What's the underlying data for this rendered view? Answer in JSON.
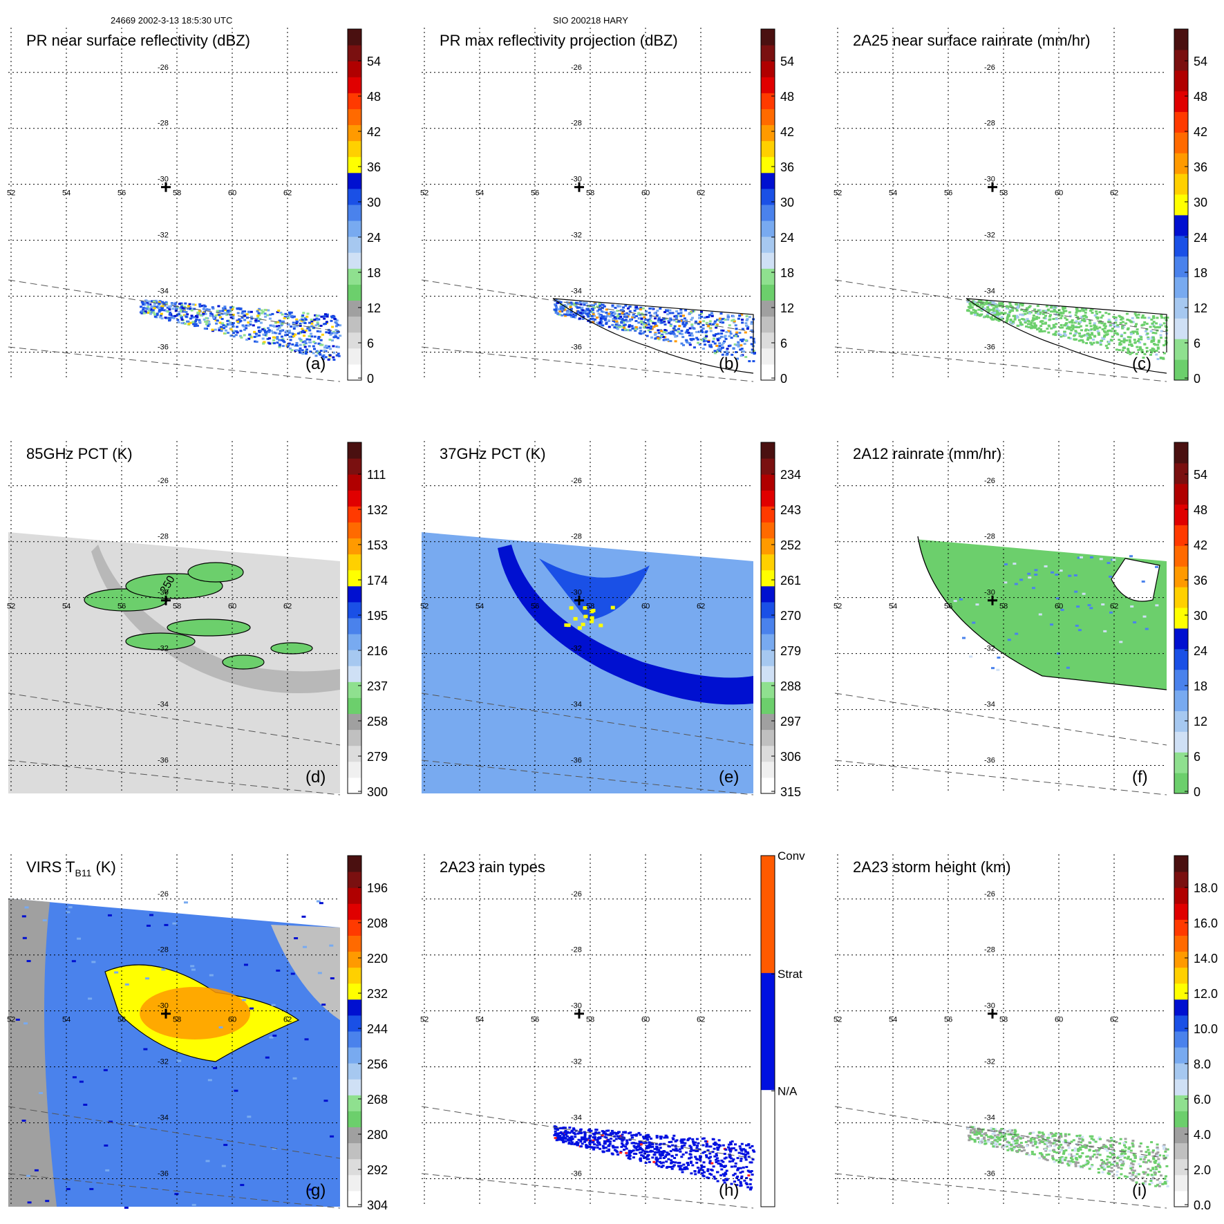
{
  "header": {
    "left": "24669 2002-3-13 18:5:30 UTC",
    "center": "SIO 200218 HARY"
  },
  "map": {
    "lat_labels": [
      "-26",
      "-28",
      "-30",
      "-32",
      "-34",
      "-36"
    ],
    "lon_labels": [
      "52",
      "54",
      "56",
      "58",
      "60",
      "62"
    ],
    "lat_values": [
      -26,
      -28,
      -30,
      -32,
      -34,
      -36
    ],
    "lon_values": [
      52,
      54,
      56,
      58,
      60,
      62
    ],
    "center_marker": {
      "lon": 57.6,
      "lat": -30.1,
      "icon": "storm-center-cross-icon"
    }
  },
  "panels": [
    {
      "id": "a",
      "title": "PR near surface reflectivity (dBZ)",
      "panel_label": "(a)",
      "colorbar_ticks": [
        "54",
        "48",
        "42",
        "36",
        "30",
        "24",
        "18",
        "12",
        "6",
        "0"
      ],
      "colorbar_type": "dbz",
      "field": "pr_swath"
    },
    {
      "id": "b",
      "title": "PR max reflectivity projection (dBZ)",
      "panel_label": "(b)",
      "colorbar_ticks": [
        "54",
        "48",
        "42",
        "36",
        "30",
        "24",
        "18",
        "12",
        "6",
        "0"
      ],
      "colorbar_type": "dbz",
      "field": "pr_swath_max"
    },
    {
      "id": "c",
      "title": "2A25 near surface rainrate (mm/hr)",
      "panel_label": "(c)",
      "colorbar_ticks": [
        "54",
        "48",
        "42",
        "36",
        "30",
        "24",
        "18",
        "12",
        "6",
        "0"
      ],
      "colorbar_type": "rain",
      "field": "pr_rain"
    },
    {
      "id": "d",
      "title": "85GHz PCT (K)",
      "panel_label": "(d)",
      "colorbar_ticks": [
        "111",
        "132",
        "153",
        "174",
        "195",
        "216",
        "237",
        "258",
        "279",
        "300"
      ],
      "colorbar_type": "pct",
      "field": "pct85",
      "contour_label": "250"
    },
    {
      "id": "e",
      "title": "37GHz PCT (K)",
      "panel_label": "(e)",
      "colorbar_ticks": [
        "234",
        "243",
        "252",
        "261",
        "270",
        "279",
        "288",
        "297",
        "306",
        "315"
      ],
      "colorbar_type": "pct",
      "field": "pct37"
    },
    {
      "id": "f",
      "title": "2A12 rainrate (mm/hr)",
      "panel_label": "(f)",
      "colorbar_ticks": [
        "54",
        "48",
        "42",
        "36",
        "30",
        "24",
        "18",
        "12",
        "6",
        "0"
      ],
      "colorbar_type": "rain",
      "field": "tmi_rain"
    },
    {
      "id": "g",
      "title": "VIRS T",
      "title_sub": "B11",
      "title_suffix": " (K)",
      "panel_label": "(g)",
      "colorbar_ticks": [
        "196",
        "208",
        "220",
        "232",
        "244",
        "256",
        "268",
        "280",
        "292",
        "304"
      ],
      "colorbar_type": "pct",
      "field": "virs"
    },
    {
      "id": "h",
      "title": "2A23 rain types",
      "panel_label": "(h)",
      "colorbar_ticks": [
        "Conv",
        "Strat",
        "N/A"
      ],
      "colorbar_type": "types",
      "field": "pr_types"
    },
    {
      "id": "i",
      "title": "2A23 storm height (km)",
      "panel_label": "(i)",
      "colorbar_ticks": [
        "18.0",
        "16.0",
        "14.0",
        "12.0",
        "10.0",
        "8.0",
        "6.0",
        "4.0",
        "2.0",
        "0.0"
      ],
      "colorbar_type": "height",
      "field": "pr_height"
    }
  ],
  "colors": {
    "dbz": [
      "#ffffff",
      "#f0f0f0",
      "#dcdcdc",
      "#c0c0c0",
      "#a0a0a0",
      "#6ccf6c",
      "#8fe08f",
      "#cfe0f5",
      "#a6c8f0",
      "#78aaf0",
      "#4a82ec",
      "#1a50e6",
      "#0010d0",
      "#ffff00",
      "#ffd000",
      "#ff9a00",
      "#ff6a00",
      "#ff3a00",
      "#e00000",
      "#b00000",
      "#7a1010",
      "#4a1010"
    ],
    "rain": [
      "#6ccf6c",
      "#8fe08f",
      "#cfe0f5",
      "#a6c8f0",
      "#78aaf0",
      "#4a82ec",
      "#1a50e6",
      "#0010d0",
      "#ffff00",
      "#ffd000",
      "#ff9a00",
      "#ff6a00",
      "#ff3a00",
      "#e00000",
      "#b00000",
      "#7a1010",
      "#4a1010"
    ],
    "pct": [
      "#ffffff",
      "#f0f0f0",
      "#dcdcdc",
      "#c0c0c0",
      "#a0a0a0",
      "#6ccf6c",
      "#8fe08f",
      "#cfe0f5",
      "#a6c8f0",
      "#78aaf0",
      "#4a82ec",
      "#1a50e6",
      "#0010d0",
      "#ffff00",
      "#ffd000",
      "#ff9a00",
      "#ff6a00",
      "#ff3a00",
      "#e00000",
      "#b00000",
      "#7a1010",
      "#4a1010"
    ],
    "height": [
      "#ffffff",
      "#f0f0f0",
      "#dcdcdc",
      "#c0c0c0",
      "#a0a0a0",
      "#6ccf6c",
      "#8fe08f",
      "#cfe0f5",
      "#a6c8f0",
      "#78aaf0",
      "#4a82ec",
      "#1a50e6",
      "#0010d0",
      "#ffff00",
      "#ffd000",
      "#ff9a00",
      "#ff6a00",
      "#ff3a00",
      "#e00000",
      "#b00000",
      "#7a1010",
      "#4a1010"
    ],
    "types": [
      "#ffffff",
      "#0010e0",
      "#ff5a00"
    ]
  }
}
